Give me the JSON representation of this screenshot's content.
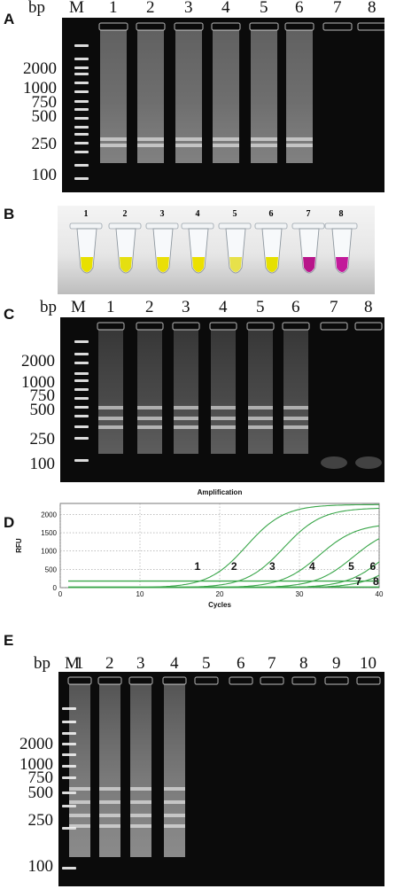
{
  "panel_letters": [
    "A",
    "B",
    "C",
    "D",
    "E"
  ],
  "gel_a": {
    "bp": "bp",
    "marker": "M",
    "lanes": [
      "1",
      "2",
      "3",
      "4",
      "5",
      "6",
      "7",
      "8"
    ],
    "sizes": [
      "2000",
      "1000",
      "750",
      "500",
      "250",
      "100"
    ]
  },
  "tubes_b": {
    "labels": [
      "1",
      "2",
      "3",
      "4",
      "5",
      "6",
      "7",
      "8"
    ],
    "colors": [
      "#e8e000",
      "#e5df10",
      "#eadf08",
      "#ece000",
      "#e7e14a",
      "#e6e000",
      "#b8158a",
      "#c21a9a"
    ]
  },
  "gel_c": {
    "bp": "bp",
    "marker": "M",
    "lanes": [
      "1",
      "2",
      "3",
      "4",
      "5",
      "6",
      "7",
      "8"
    ],
    "sizes": [
      "2000",
      "1000",
      "750",
      "500",
      "250",
      "100"
    ]
  },
  "chart_data": {
    "type": "line",
    "title": "Amplification",
    "xlabel": "Cycles",
    "ylabel": "RFU",
    "xlim": [
      0,
      40
    ],
    "ylim": [
      0,
      2300
    ],
    "xticks": [
      "0",
      "10",
      "20",
      "30",
      "40"
    ],
    "yticks": [
      "0",
      "500",
      "1000",
      "1500",
      "2000"
    ],
    "grid": "dotted",
    "threshold": 180,
    "series": [
      {
        "name": "1",
        "ct": 17.5,
        "plateau": 2270
      },
      {
        "name": "2",
        "ct": 22.3,
        "plateau": 2180
      },
      {
        "name": "3",
        "ct": 27.3,
        "plateau": 1760
      },
      {
        "name": "4",
        "ct": 31.7,
        "plateau": 1680
      },
      {
        "name": "5",
        "ct": 35.7,
        "plateau": 1650
      },
      {
        "name": "6",
        "ct": 38.2,
        "plateau": 1520
      },
      {
        "name": "7",
        "ct": null,
        "plateau": 0
      },
      {
        "name": "8",
        "ct": null,
        "plateau": 0
      }
    ],
    "line_color": "#3aa64a"
  },
  "gel_e": {
    "bp": "bp",
    "marker": "M",
    "lanes": [
      "1",
      "2",
      "3",
      "4",
      "5",
      "6",
      "7",
      "8",
      "9",
      "10"
    ],
    "sizes": [
      "2000",
      "1000",
      "750",
      "500",
      "250",
      "100"
    ]
  }
}
